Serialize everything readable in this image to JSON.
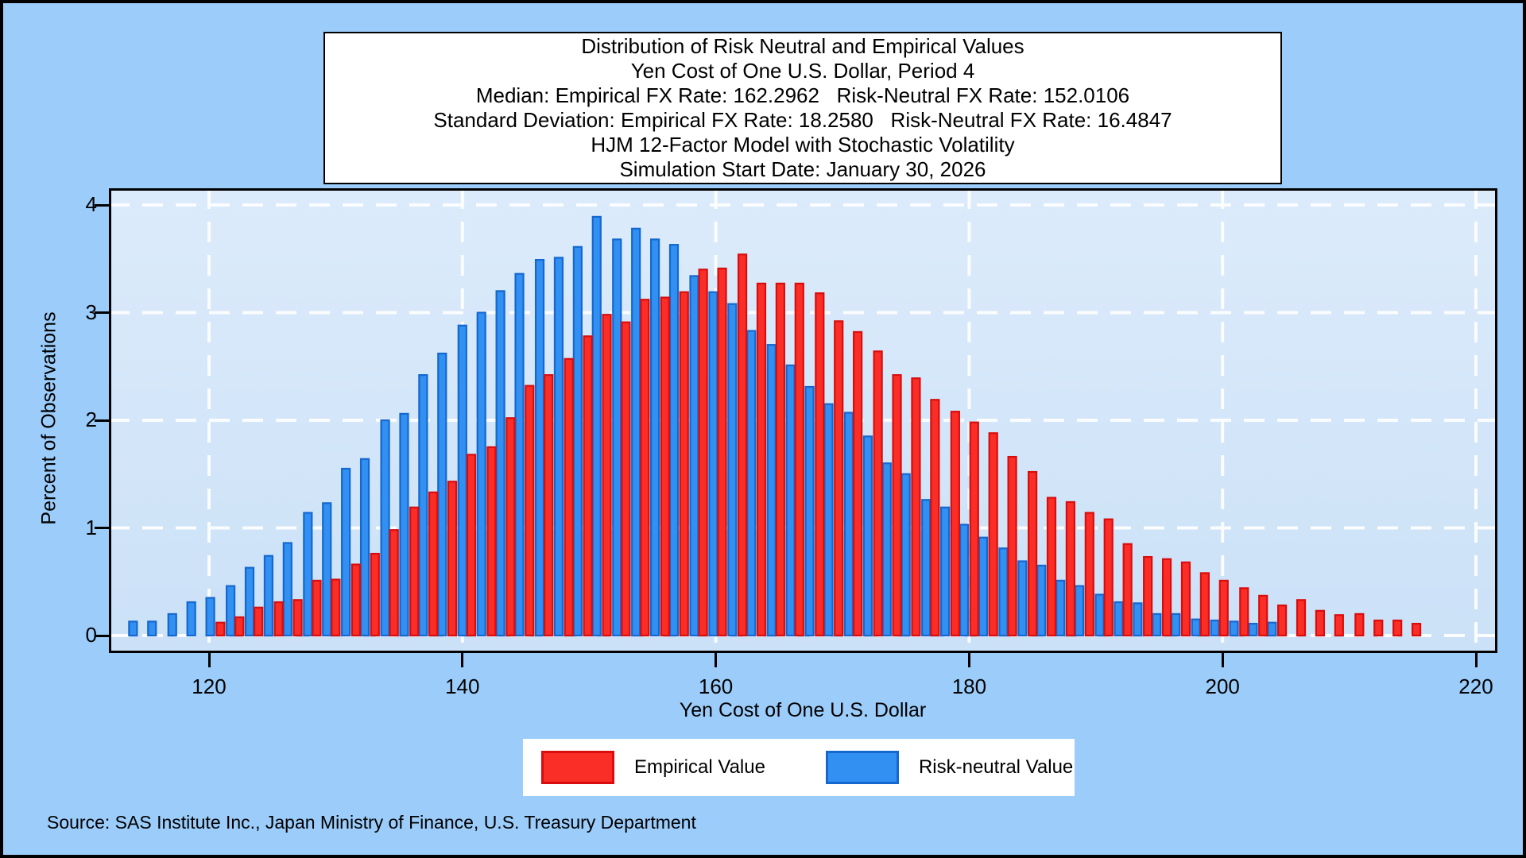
{
  "page": {
    "background": "#9BCCFA",
    "border_color": "#000000",
    "plot_bg_top": "#DCEBFB",
    "plot_bg_bottom": "#CBE1F7",
    "grid_color": "#FFFFFF",
    "frame_color": "#000000"
  },
  "source_note": "Source: SAS Institute Inc., Japan Ministry of Finance, U.S. Treasury Department",
  "chart_data": {
    "type": "bar",
    "title_lines": [
      "Distribution of Risk Neutral and Empirical Values",
      "Yen Cost of One U.S. Dollar, Period 4",
      "Median: Empirical FX Rate: 162.2962   Risk-Neutral FX Rate: 152.0106",
      "Standard Deviation: Empirical FX Rate: 18.2580   Risk-Neutral FX Rate: 16.4847",
      "HJM 12-Factor Model with Stochastic Volatility",
      "Simulation Start Date: January 30, 2026"
    ],
    "xlabel": "Yen Cost of One U.S. Dollar",
    "ylabel": "Percent of Observations",
    "x_ticks": [
      120,
      140,
      160,
      180,
      200,
      220
    ],
    "y_ticks": [
      0,
      1,
      2,
      3,
      4
    ],
    "xlim": [
      112,
      222
    ],
    "ylim": [
      0,
      4.2
    ],
    "grid": true,
    "legend_position": "bottom",
    "series": [
      {
        "name": "Empirical Value",
        "color": "#FB2D27",
        "border_color": "#D90D0D",
        "x": [
          120.9,
          122.4,
          123.9,
          125.5,
          127.0,
          128.5,
          130.0,
          131.6,
          133.1,
          134.6,
          136.2,
          137.7,
          139.2,
          140.7,
          142.3,
          143.8,
          145.3,
          146.8,
          148.4,
          149.9,
          151.4,
          152.9,
          154.4,
          156.0,
          157.5,
          159.0,
          160.5,
          162.1,
          163.6,
          165.1,
          166.6,
          168.2,
          169.7,
          171.2,
          172.8,
          174.3,
          175.8,
          177.3,
          178.9,
          180.4,
          181.9,
          183.4,
          185.0,
          186.5,
          188.0,
          189.5,
          191.0,
          192.5,
          194.1,
          195.6,
          197.1,
          198.6,
          200.1,
          201.7,
          203.2,
          204.7,
          206.2,
          207.7,
          209.2,
          210.8,
          212.3,
          213.8,
          215.3
        ],
        "values": [
          0.12,
          0.17,
          0.26,
          0.31,
          0.33,
          0.51,
          0.52,
          0.66,
          0.76,
          0.98,
          1.19,
          1.33,
          1.43,
          1.68,
          1.75,
          2.02,
          2.32,
          2.42,
          2.57,
          2.78,
          2.98,
          2.91,
          3.12,
          3.14,
          3.19,
          3.4,
          3.41,
          3.54,
          3.27,
          3.27,
          3.27,
          3.18,
          2.92,
          2.82,
          2.64,
          2.42,
          2.39,
          2.19,
          2.08,
          1.98,
          1.88,
          1.66,
          1.52,
          1.28,
          1.24,
          1.14,
          1.08,
          0.85,
          0.73,
          0.71,
          0.68,
          0.58,
          0.51,
          0.44,
          0.37,
          0.28,
          0.33,
          0.23,
          0.19,
          0.2,
          0.14,
          0.14,
          0.11
        ]
      },
      {
        "name": "Risk-neutral Value",
        "color": "#3190F2",
        "border_color": "#1468CF",
        "x": [
          114.0,
          115.5,
          117.1,
          118.6,
          120.1,
          121.7,
          123.2,
          124.7,
          126.2,
          127.8,
          129.3,
          130.8,
          132.3,
          133.9,
          135.4,
          136.9,
          138.4,
          140.0,
          141.5,
          143.0,
          144.5,
          146.1,
          147.6,
          149.1,
          150.6,
          152.2,
          153.7,
          155.2,
          156.7,
          158.3,
          159.8,
          161.3,
          162.8,
          164.4,
          165.9,
          167.4,
          168.9,
          170.5,
          172.0,
          173.5,
          175.0,
          176.6,
          178.1,
          179.6,
          181.1,
          182.7,
          184.2,
          185.7,
          187.2,
          188.7,
          190.3,
          191.8,
          193.3,
          194.8,
          196.3,
          197.9,
          199.4,
          200.9,
          202.4,
          203.9
        ],
        "values": [
          0.13,
          0.13,
          0.2,
          0.31,
          0.35,
          0.46,
          0.63,
          0.74,
          0.86,
          1.14,
          1.23,
          1.55,
          1.64,
          2.0,
          2.06,
          2.42,
          2.62,
          2.88,
          3.0,
          3.2,
          3.36,
          3.49,
          3.51,
          3.61,
          3.89,
          3.68,
          3.78,
          3.68,
          3.63,
          3.34,
          3.19,
          3.08,
          2.83,
          2.7,
          2.51,
          2.31,
          2.15,
          2.07,
          1.85,
          1.6,
          1.5,
          1.26,
          1.19,
          1.03,
          0.91,
          0.81,
          0.69,
          0.65,
          0.51,
          0.46,
          0.38,
          0.31,
          0.3,
          0.2,
          0.2,
          0.15,
          0.14,
          0.13,
          0.11,
          0.12
        ]
      }
    ]
  }
}
